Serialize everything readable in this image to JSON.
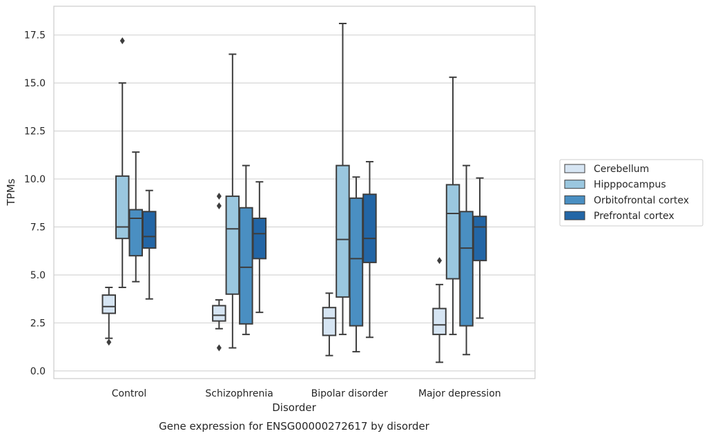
{
  "chart_data": {
    "type": "box",
    "xlabel": "Disorder",
    "ylabel": "TPMs",
    "caption": "Gene expression for ENSG00000272617 by disorder",
    "ylim": [
      -0.4,
      19.0
    ],
    "yticks": [
      "0.0",
      "2.5",
      "5.0",
      "7.5",
      "10.0",
      "12.5",
      "15.0",
      "17.5"
    ],
    "grid": "horizontal",
    "legend_placement": "right",
    "categories": [
      "Control",
      "Schizophrenia",
      "Bipolar disorder",
      "Major depression"
    ],
    "series": [
      {
        "name": "Cerebellum",
        "color": "#d6e5f3",
        "boxes": [
          {
            "min": 1.7,
            "q1": 3.0,
            "median": 3.35,
            "q3": 3.95,
            "max": 4.35,
            "outliers": [
              1.5
            ]
          },
          {
            "min": 2.2,
            "q1": 2.6,
            "median": 2.9,
            "q3": 3.4,
            "max": 3.7,
            "outliers": [
              9.1,
              8.6,
              1.2
            ]
          },
          {
            "min": 0.8,
            "q1": 1.85,
            "median": 2.75,
            "q3": 3.3,
            "max": 4.05,
            "outliers": []
          },
          {
            "min": 0.45,
            "q1": 1.9,
            "median": 2.4,
            "q3": 3.25,
            "max": 4.5,
            "outliers": [
              5.75
            ]
          }
        ]
      },
      {
        "name": "Hipppocampus",
        "color": "#9ac7df",
        "boxes": [
          {
            "min": 4.35,
            "q1": 6.9,
            "median": 7.5,
            "q3": 10.15,
            "max": 15.0,
            "outliers": [
              17.2
            ]
          },
          {
            "min": 1.2,
            "q1": 4.0,
            "median": 7.4,
            "q3": 9.1,
            "max": 16.5,
            "outliers": []
          },
          {
            "min": 1.9,
            "q1": 3.85,
            "median": 6.85,
            "q3": 10.7,
            "max": 18.1,
            "outliers": []
          },
          {
            "min": 1.9,
            "q1": 4.8,
            "median": 8.2,
            "q3": 9.7,
            "max": 15.3,
            "outliers": []
          }
        ]
      },
      {
        "name": "Orbitofrontal cortex",
        "color": "#4a8fc2",
        "boxes": [
          {
            "min": 4.65,
            "q1": 6.0,
            "median": 7.95,
            "q3": 8.4,
            "max": 11.4,
            "outliers": []
          },
          {
            "min": 1.9,
            "q1": 2.45,
            "median": 5.4,
            "q3": 8.5,
            "max": 10.7,
            "outliers": []
          },
          {
            "min": 1.0,
            "q1": 2.35,
            "median": 5.85,
            "q3": 9.0,
            "max": 10.1,
            "outliers": []
          },
          {
            "min": 0.85,
            "q1": 2.35,
            "median": 6.4,
            "q3": 8.3,
            "max": 10.7,
            "outliers": []
          }
        ]
      },
      {
        "name": "Prefrontal cortex",
        "color": "#2366a6",
        "boxes": [
          {
            "min": 3.75,
            "q1": 6.4,
            "median": 7.0,
            "q3": 8.3,
            "max": 9.4,
            "outliers": []
          },
          {
            "min": 3.05,
            "q1": 5.85,
            "median": 7.15,
            "q3": 7.95,
            "max": 9.85,
            "outliers": []
          },
          {
            "min": 1.75,
            "q1": 5.65,
            "median": 6.9,
            "q3": 9.2,
            "max": 10.9,
            "outliers": []
          },
          {
            "min": 2.75,
            "q1": 5.75,
            "median": 7.5,
            "q3": 8.05,
            "max": 10.05,
            "outliers": []
          }
        ]
      }
    ]
  }
}
